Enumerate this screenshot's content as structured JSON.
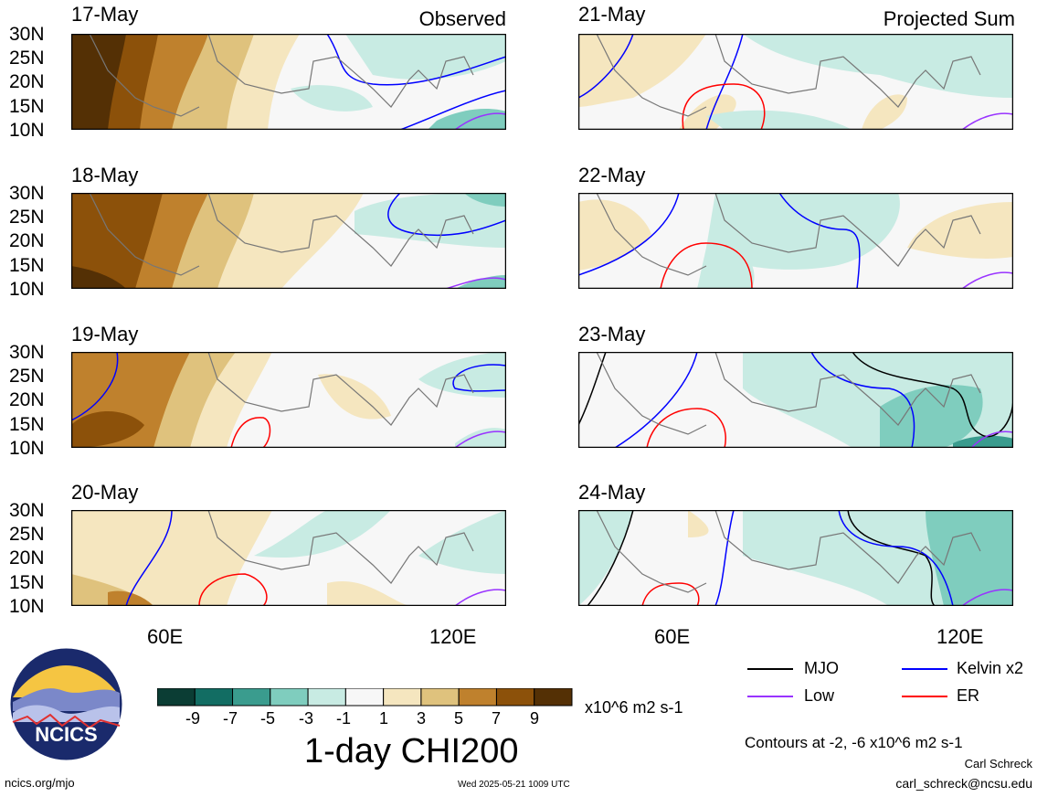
{
  "panels": {
    "left": {
      "header": "Observed",
      "dates": [
        "17-May",
        "18-May",
        "19-May",
        "20-May"
      ]
    },
    "right": {
      "header": "Projected Sum",
      "dates": [
        "21-May",
        "22-May",
        "23-May",
        "24-May"
      ]
    }
  },
  "lat_ticks": [
    "30N",
    "25N",
    "20N",
    "15N",
    "10N"
  ],
  "lon_ticks": [
    "60E",
    "120E"
  ],
  "legend": {
    "items": [
      {
        "label": "MJO",
        "color": "#000000"
      },
      {
        "label": "Kelvin x2",
        "color": "#0000ff"
      },
      {
        "label": "Low",
        "color": "#9933ff"
      },
      {
        "label": "ER",
        "color": "#ff0000"
      }
    ],
    "contours_note": "Contours at -2, -6 x10^6 m2 s-1"
  },
  "colorbar": {
    "colors": [
      "#0b3d34",
      "#126d63",
      "#3a9c8e",
      "#7fcdbe",
      "#c8ebe3",
      "#f7f7f7",
      "#f5e6bf",
      "#dfc27d",
      "#bf812d",
      "#8c510a",
      "#543005"
    ],
    "labels": [
      "-9",
      "-7",
      "-5",
      "-3",
      "-1",
      "1",
      "3",
      "5",
      "7",
      "9"
    ],
    "units": "x10^6 m2 s-1"
  },
  "title": "1-day CHI200",
  "footer": {
    "logo_text": "NCICS",
    "url": "ncics.org/mjo",
    "timestamp": "Wed 2025-05-21 1009 UTC",
    "author": "Carl Schreck",
    "email": "carl_schreck@ncsu.edu"
  }
}
